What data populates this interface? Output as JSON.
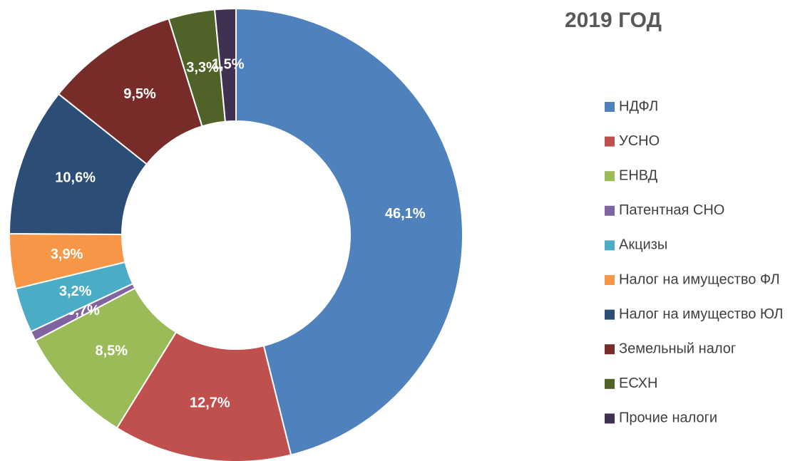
{
  "chart_data": {
    "type": "donut",
    "title": "2019 ГОД",
    "categories": [
      "НДФЛ",
      "УСНО",
      "ЕНВД",
      "Патентная СНО",
      "Акцизы",
      "Налог на имущество ФЛ",
      "Налог на имущество ЮЛ",
      "Земельный налог",
      "ЕСХН",
      "Прочие налоги"
    ],
    "values": [
      46.1,
      12.7,
      8.5,
      0.7,
      3.2,
      3.9,
      10.6,
      9.5,
      3.3,
      1.5
    ],
    "value_labels": [
      "46,1%",
      "12,7%",
      "8,5%",
      "0,7%",
      "3,2%",
      "3,9%",
      "10,6%",
      "9,5%",
      "3,3%",
      "1,5%"
    ],
    "colors": [
      "#4f81bd",
      "#c0504d",
      "#9bbb59",
      "#8064a2",
      "#4bacc6",
      "#f79646",
      "#2c4d75",
      "#772c2a",
      "#4f6228",
      "#3f3151"
    ],
    "legend": "right"
  }
}
